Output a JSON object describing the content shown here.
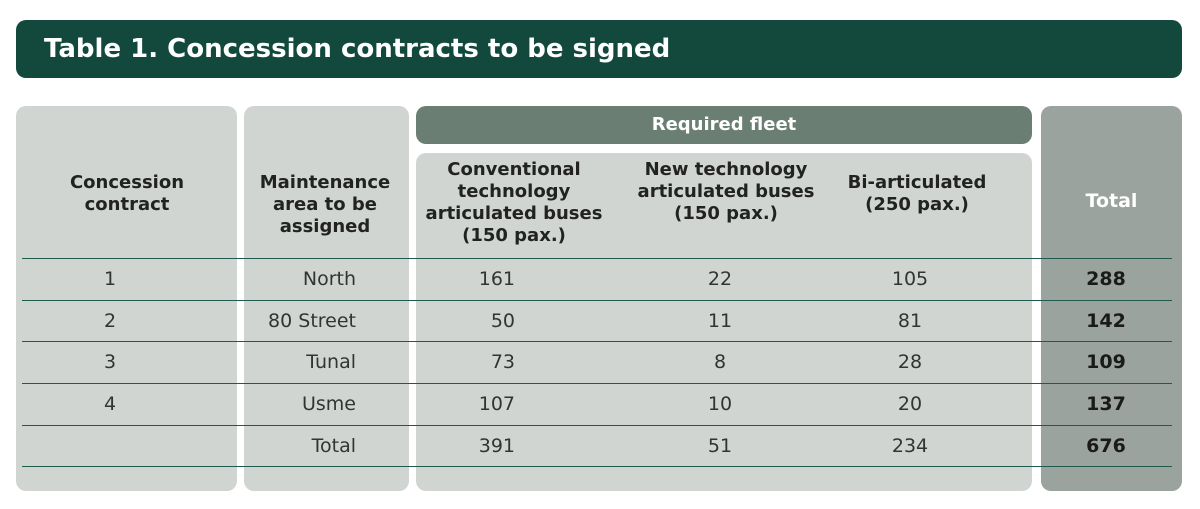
{
  "title": "Table 1. Concession contracts to be signed",
  "header": {
    "concession": "Concession contract",
    "maintenance": "Maintenance area to be assigned",
    "required_fleet": "Required fleet",
    "conventional": "Conventional technology articulated buses (150 pax.)",
    "new_tech": "New technology articulated buses (150 pax.)",
    "bi_articulated": "Bi-articulated (250 pax.)",
    "total": "Total"
  },
  "rows": [
    {
      "contract": "1",
      "area": "North",
      "conventional": "161",
      "new_tech": "22",
      "bi": "105",
      "total": "288"
    },
    {
      "contract": "2",
      "area": "80 Street",
      "conventional": "50",
      "new_tech": "11",
      "bi": "81",
      "total": "142"
    },
    {
      "contract": "3",
      "area": "Tunal",
      "conventional": "73",
      "new_tech": "8",
      "bi": "28",
      "total": "109"
    },
    {
      "contract": "4",
      "area": "Usme",
      "conventional": "107",
      "new_tech": "10",
      "bi": "20",
      "total": "137"
    },
    {
      "contract": "",
      "area": "Total",
      "conventional": "391",
      "new_tech": "51",
      "bi": "234",
      "total": "676"
    }
  ]
}
